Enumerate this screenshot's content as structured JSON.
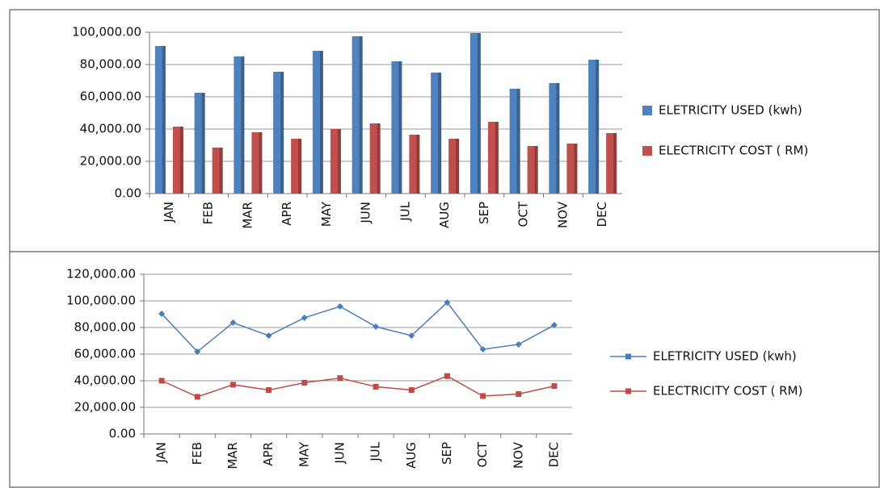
{
  "chart_data": [
    {
      "type": "bar",
      "categories": [
        "JAN",
        "FEB",
        "MAR",
        "APR",
        "MAY",
        "JUN",
        "JUL",
        "AUG",
        "SEP",
        "OCT",
        "NOV",
        "DEC"
      ],
      "series": [
        {
          "name": "ELETRICITY USED (kwh)",
          "color": "#4f81bd",
          "values": [
            91500,
            62500,
            85000,
            75500,
            88500,
            97500,
            82000,
            75000,
            99500,
            65000,
            68500,
            83000
          ]
        },
        {
          "name": "ELECTRICITY COST ( RM)",
          "color": "#c0504d",
          "values": [
            41500,
            28500,
            38000,
            34000,
            40000,
            43500,
            36500,
            34000,
            44500,
            29500,
            31000,
            37500
          ]
        }
      ],
      "ylim": [
        0,
        100000
      ],
      "yticks": [
        {
          "value": 0,
          "label": "0.00"
        },
        {
          "value": 20000,
          "label": "20,000.00"
        },
        {
          "value": 40000,
          "label": "40,000.00"
        },
        {
          "value": 60000,
          "label": "60,000.00"
        },
        {
          "value": 80000,
          "label": "80,000.00"
        },
        {
          "value": 100000,
          "label": "100,000.00"
        }
      ],
      "grid": true,
      "legend": "right"
    },
    {
      "type": "line",
      "categories": [
        "JAN",
        "FEB",
        "MAR",
        "APR",
        "MAY",
        "JUN",
        "JUL",
        "AUG",
        "SEP",
        "OCT",
        "NOV",
        "DEC"
      ],
      "series": [
        {
          "name": "ELETRICITY USED (kwh)",
          "color": "#4a7ebb",
          "values": [
            90300,
            61800,
            83600,
            73900,
            87300,
            95800,
            80600,
            73900,
            98800,
            63600,
            67300,
            81800
          ]
        },
        {
          "name": "ELECTRICITY COST ( RM)",
          "color": "#be4b48",
          "values": [
            40000,
            27900,
            37000,
            33000,
            38500,
            42000,
            35500,
            33000,
            43500,
            28500,
            30000,
            36000
          ]
        }
      ],
      "ylim": [
        0,
        120000
      ],
      "yticks": [
        {
          "value": 0,
          "label": "0.00"
        },
        {
          "value": 20000,
          "label": "20,000.00"
        },
        {
          "value": 40000,
          "label": "40,000.00"
        },
        {
          "value": 60000,
          "label": "60,000.00"
        },
        {
          "value": 80000,
          "label": "80,000.00"
        },
        {
          "value": 100000,
          "label": "100,000.00"
        },
        {
          "value": 120000,
          "label": "120,000.00"
        }
      ],
      "grid": true,
      "legend": "right"
    }
  ]
}
